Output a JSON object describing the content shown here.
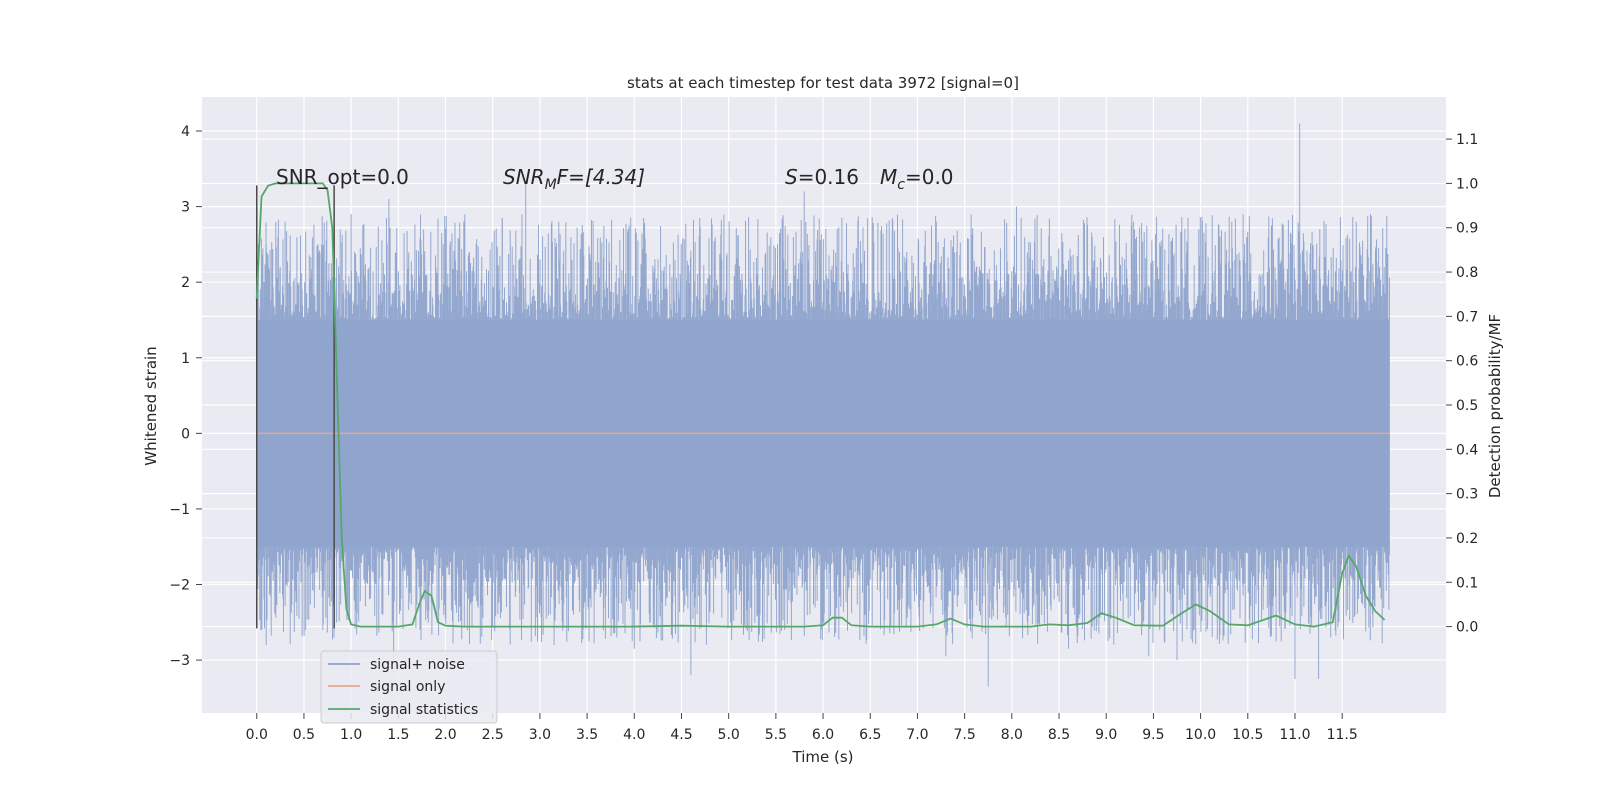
{
  "chart_data": {
    "type": "line",
    "title": "stats at each timestep for test data 3972 [signal=0]",
    "xlabel": "Time (s)",
    "ylabel": "Whitened strain",
    "y2label": "Detection probability/MF",
    "xlim": [
      -0.58,
      12.6
    ],
    "ylim": [
      -3.7,
      4.45
    ],
    "y2lim": [
      -0.195,
      1.195
    ],
    "x_ticks": [
      "0.0",
      "0.5",
      "1.0",
      "1.5",
      "2.0",
      "2.5",
      "3.0",
      "3.5",
      "4.0",
      "4.5",
      "5.0",
      "5.5",
      "6.0",
      "6.5",
      "7.0",
      "7.5",
      "8.0",
      "8.5",
      "9.0",
      "9.5",
      "10.0",
      "10.5",
      "11.0",
      "11.5"
    ],
    "y_ticks": [
      "−3",
      "−2",
      "−1",
      "0",
      "1",
      "2",
      "3",
      "4"
    ],
    "y2_ticks": [
      "0.0",
      "0.1",
      "0.2",
      "0.3",
      "0.4",
      "0.5",
      "0.6",
      "0.7",
      "0.8",
      "0.9",
      "1.0",
      "1.1"
    ],
    "grid": true,
    "legend_position": "lower-left",
    "annotations": {
      "snr_opt": "SNR_opt=0.0",
      "snr_mf_prefix": "SNR",
      "snr_mf_sub": "M",
      "snr_mf_suffix": "F=[4.34]",
      "s_label": "S",
      "s_value": "=0.16",
      "mc_label": "M",
      "mc_sub": "c",
      "mc_value": "=0.0"
    },
    "markers_x": [
      0.0,
      0.82
    ],
    "series": [
      {
        "name": "signal+ noise",
        "color": "#8fa4cc",
        "description_range": [
          0.0,
          12.0
        ],
        "envelope": {
          "typical_abs": 1.5,
          "max": 4.1,
          "min": -3.35
        },
        "spikes": [
          [
            0.1,
            2.5
          ],
          [
            0.25,
            2.2
          ],
          [
            1.0,
            2.9
          ],
          [
            1.4,
            3.1
          ],
          [
            2.6,
            2.85
          ],
          [
            2.85,
            3.3
          ],
          [
            3.2,
            2.8
          ],
          [
            4.1,
            2.85
          ],
          [
            5.8,
            3.2
          ],
          [
            6.2,
            2.85
          ],
          [
            7.2,
            2.8
          ],
          [
            8.05,
            3.0
          ],
          [
            9.3,
            2.7
          ],
          [
            10.45,
            2.9
          ],
          [
            10.75,
            2.75
          ],
          [
            11.05,
            4.1
          ],
          [
            11.65,
            2.8
          ],
          [
            11.8,
            2.9
          ],
          [
            0.1,
            -2.8
          ],
          [
            0.7,
            -2.6
          ],
          [
            1.45,
            -3.0
          ],
          [
            3.15,
            -2.8
          ],
          [
            4.0,
            -2.85
          ],
          [
            4.6,
            -3.2
          ],
          [
            7.3,
            -2.95
          ],
          [
            7.75,
            -3.35
          ],
          [
            8.6,
            -2.85
          ],
          [
            9.45,
            -2.95
          ],
          [
            9.75,
            -3.0
          ],
          [
            11.0,
            -3.25
          ],
          [
            11.25,
            -3.25
          ]
        ]
      },
      {
        "name": "signal only",
        "color": "#e8a78c",
        "x": [
          0.0,
          12.0
        ],
        "y": [
          0.0,
          0.0
        ]
      },
      {
        "name": "signal statistics",
        "color": "#55a868",
        "axis": "right",
        "x": [
          0.0,
          0.05,
          0.12,
          0.2,
          0.3,
          0.5,
          0.7,
          0.75,
          0.8,
          0.85,
          0.9,
          0.95,
          1.0,
          1.1,
          1.5,
          1.65,
          1.72,
          1.78,
          1.85,
          1.92,
          2.0,
          2.2,
          3.0,
          4.0,
          4.5,
          5.0,
          5.8,
          6.0,
          6.1,
          6.2,
          6.3,
          6.5,
          7.0,
          7.2,
          7.35,
          7.5,
          7.7,
          8.2,
          8.4,
          8.6,
          8.8,
          8.95,
          9.1,
          9.3,
          9.6,
          9.8,
          9.95,
          10.1,
          10.3,
          10.5,
          10.8,
          11.0,
          11.2,
          11.4,
          11.5,
          11.57,
          11.65,
          11.75,
          11.85,
          11.95
        ],
        "y": [
          0.74,
          0.97,
          0.995,
          1.0,
          1.0,
          1.0,
          1.0,
          0.985,
          0.9,
          0.55,
          0.2,
          0.04,
          0.005,
          0.0,
          0.0,
          0.005,
          0.05,
          0.08,
          0.07,
          0.01,
          0.002,
          0.0,
          0.0,
          0.0,
          0.002,
          0.0,
          0.0,
          0.003,
          0.02,
          0.02,
          0.003,
          0.0,
          0.0,
          0.005,
          0.018,
          0.005,
          0.0,
          0.0,
          0.005,
          0.003,
          0.008,
          0.03,
          0.02,
          0.003,
          0.002,
          0.03,
          0.05,
          0.035,
          0.005,
          0.003,
          0.025,
          0.005,
          0.0,
          0.01,
          0.12,
          0.16,
          0.135,
          0.07,
          0.035,
          0.015
        ]
      }
    ]
  }
}
